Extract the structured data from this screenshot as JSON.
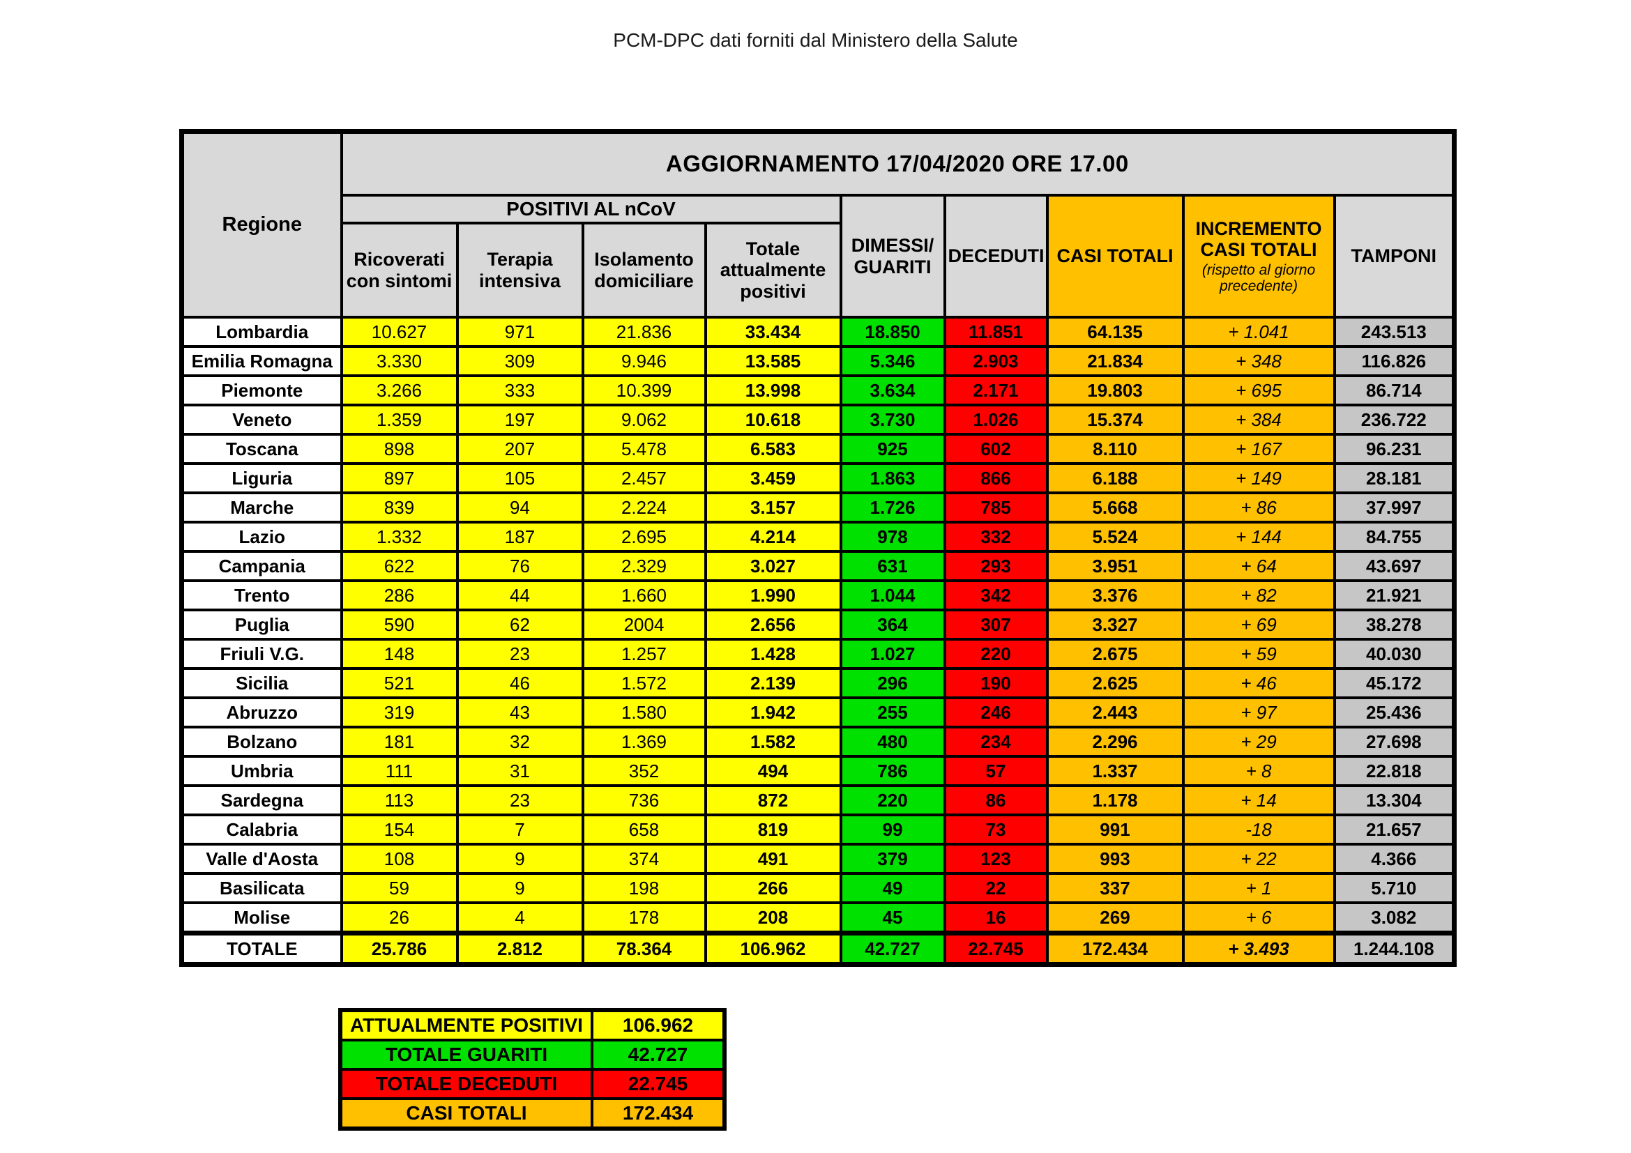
{
  "title": "PCM-DPC dati forniti dal Ministero della Salute",
  "table": {
    "update_header": "AGGIORNAMENTO 17/04/2020 ORE 17.00",
    "region_header": "Regione",
    "group_header": "POSITIVI AL nCoV",
    "col_headers": {
      "ricoverati": "Ricoverati con sintomi",
      "terapia": "Terapia intensiva",
      "isolamento": "Isolamento domiciliare",
      "totale_positivi": "Totale attualmente positivi",
      "dimessi": "DIMESSI/\nGUARITI",
      "deceduti": "DECEDUTI",
      "casi_totali": "CASI TOTALI",
      "incremento": "INCREMENTO\nCASI TOTALI",
      "incremento_note": "(rispetto al giorno precedente)",
      "tamponi": "TAMPONI"
    }
  },
  "colors": {
    "yellow": "#FFFF00",
    "green": "#00E100",
    "red": "#FF0000",
    "orange": "#FFC000",
    "header_gray": "#D9D9D9",
    "tamponi_gray": "#C6C6C6",
    "border": "#000000"
  },
  "chart_data": {
    "type": "table",
    "title": "PCM-DPC dati forniti dal Ministero della Salute",
    "update": "AGGIORNAMENTO 17/04/2020 ORE 17.00",
    "columns": [
      "Regione",
      "Ricoverati con sintomi",
      "Terapia intensiva",
      "Isolamento domiciliare",
      "Totale attualmente positivi",
      "DIMESSI/GUARITI",
      "DECEDUTI",
      "CASI TOTALI",
      "INCREMENTO CASI TOTALI (rispetto al giorno precedente)",
      "TAMPONI"
    ],
    "rows": [
      [
        "Lombardia",
        "10.627",
        "971",
        "21.836",
        "33.434",
        "18.850",
        "11.851",
        "64.135",
        "+ 1.041",
        "243.513"
      ],
      [
        "Emilia Romagna",
        "3.330",
        "309",
        "9.946",
        "13.585",
        "5.346",
        "2.903",
        "21.834",
        "+ 348",
        "116.826"
      ],
      [
        "Piemonte",
        "3.266",
        "333",
        "10.399",
        "13.998",
        "3.634",
        "2.171",
        "19.803",
        "+ 695",
        "86.714"
      ],
      [
        "Veneto",
        "1.359",
        "197",
        "9.062",
        "10.618",
        "3.730",
        "1.026",
        "15.374",
        "+ 384",
        "236.722"
      ],
      [
        "Toscana",
        "898",
        "207",
        "5.478",
        "6.583",
        "925",
        "602",
        "8.110",
        "+ 167",
        "96.231"
      ],
      [
        "Liguria",
        "897",
        "105",
        "2.457",
        "3.459",
        "1.863",
        "866",
        "6.188",
        "+ 149",
        "28.181"
      ],
      [
        "Marche",
        "839",
        "94",
        "2.224",
        "3.157",
        "1.726",
        "785",
        "5.668",
        "+ 86",
        "37.997"
      ],
      [
        "Lazio",
        "1.332",
        "187",
        "2.695",
        "4.214",
        "978",
        "332",
        "5.524",
        "+ 144",
        "84.755"
      ],
      [
        "Campania",
        "622",
        "76",
        "2.329",
        "3.027",
        "631",
        "293",
        "3.951",
        "+ 64",
        "43.697"
      ],
      [
        "Trento",
        "286",
        "44",
        "1.660",
        "1.990",
        "1.044",
        "342",
        "3.376",
        "+ 82",
        "21.921"
      ],
      [
        "Puglia",
        "590",
        "62",
        "2004",
        "2.656",
        "364",
        "307",
        "3.327",
        "+ 69",
        "38.278"
      ],
      [
        "Friuli V.G.",
        "148",
        "23",
        "1.257",
        "1.428",
        "1.027",
        "220",
        "2.675",
        "+ 59",
        "40.030"
      ],
      [
        "Sicilia",
        "521",
        "46",
        "1.572",
        "2.139",
        "296",
        "190",
        "2.625",
        "+ 46",
        "45.172"
      ],
      [
        "Abruzzo",
        "319",
        "43",
        "1.580",
        "1.942",
        "255",
        "246",
        "2.443",
        "+ 97",
        "25.436"
      ],
      [
        "Bolzano",
        "181",
        "32",
        "1.369",
        "1.582",
        "480",
        "234",
        "2.296",
        "+ 29",
        "27.698"
      ],
      [
        "Umbria",
        "111",
        "31",
        "352",
        "494",
        "786",
        "57",
        "1.337",
        "+ 8",
        "22.818"
      ],
      [
        "Sardegna",
        "113",
        "23",
        "736",
        "872",
        "220",
        "86",
        "1.178",
        "+ 14",
        "13.304"
      ],
      [
        "Calabria",
        "154",
        "7",
        "658",
        "819",
        "99",
        "73",
        "991",
        "-18",
        "21.657"
      ],
      [
        "Valle d'Aosta",
        "108",
        "9",
        "374",
        "491",
        "379",
        "123",
        "993",
        "+ 22",
        "4.366"
      ],
      [
        "Basilicata",
        "59",
        "9",
        "198",
        "266",
        "49",
        "22",
        "337",
        "+ 1",
        "5.710"
      ],
      [
        "Molise",
        "26",
        "4",
        "178",
        "208",
        "45",
        "16",
        "269",
        "+ 6",
        "3.082"
      ]
    ],
    "totals": [
      "TOTALE",
      "25.786",
      "2.812",
      "78.364",
      "106.962",
      "42.727",
      "22.745",
      "172.434",
      "+ 3.493",
      "1.244.108"
    ],
    "summary": [
      {
        "label": "ATTUALMENTE POSITIVI",
        "value": "106.962"
      },
      {
        "label": "TOTALE GUARITI",
        "value": "42.727"
      },
      {
        "label": "TOTALE DECEDUTI",
        "value": "22.745"
      },
      {
        "label": "CASI TOTALI",
        "value": "172.434"
      }
    ]
  }
}
